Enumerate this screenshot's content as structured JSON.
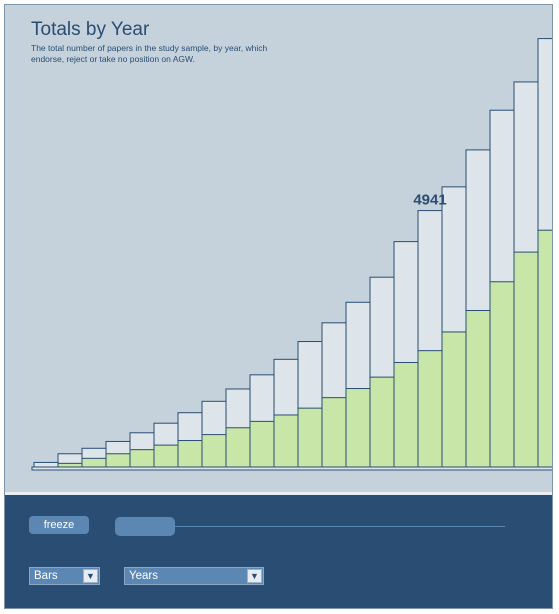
{
  "chart_data": {
    "type": "bar",
    "title": "Totals by Year",
    "subtitle": "The total number of papers in the study sample, by year, which endorse, reject or take no position on AGW.",
    "ylim": [
      0,
      9600
    ],
    "series": [
      {
        "name": "",
        "values": [
          100,
          290,
          410,
          560,
          750,
          960,
          1190,
          1440,
          1710,
          2020,
          2360,
          2750,
          3160,
          3610,
          4160,
          4940,
          5620,
          6140,
          6950,
          7820,
          8440,
          9390
        ]
      },
      {
        "name": "",
        "values": [
          0,
          80,
          190,
          290,
          380,
          480,
          580,
          710,
          860,
          1000,
          1140,
          1290,
          1520,
          1720,
          1970,
          2290,
          2550,
          2960,
          3430,
          4060,
          4710,
          5190
        ]
      }
    ],
    "annotations": [
      {
        "bar_index": 16,
        "text": "4941"
      }
    ],
    "colors": {
      "total_fill": "#dde4ea",
      "subset_fill": "#c8e6a8",
      "outline": "#2a4d73"
    }
  },
  "controls": {
    "freeze_label": "freeze",
    "chart_type_value": "Bars",
    "grouping_value": "Years",
    "slider_fraction": 0
  }
}
